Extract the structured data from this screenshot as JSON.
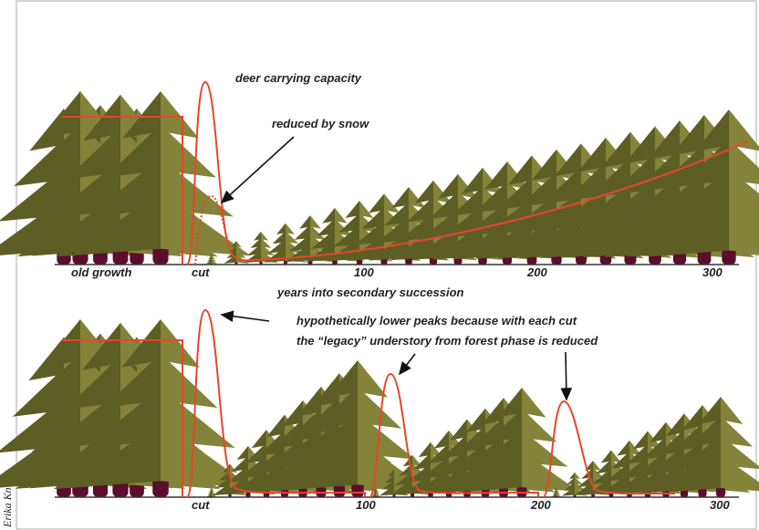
{
  "credit": "Erika Knight",
  "top_panel": {
    "annotations": [
      "deer carrying capacity",
      "reduced by snow"
    ],
    "axis_labels": [
      "old growth",
      "cut",
      "100",
      "200",
      "300"
    ],
    "axis_title": "years into secondary succession"
  },
  "bottom_panel": {
    "annotation_lines": [
      "hypothetically lower peaks because with each cut",
      "the “legacy” understory from forest phase is reduced"
    ],
    "axis_labels": [
      "cut",
      "100",
      "200",
      "300"
    ]
  }
}
